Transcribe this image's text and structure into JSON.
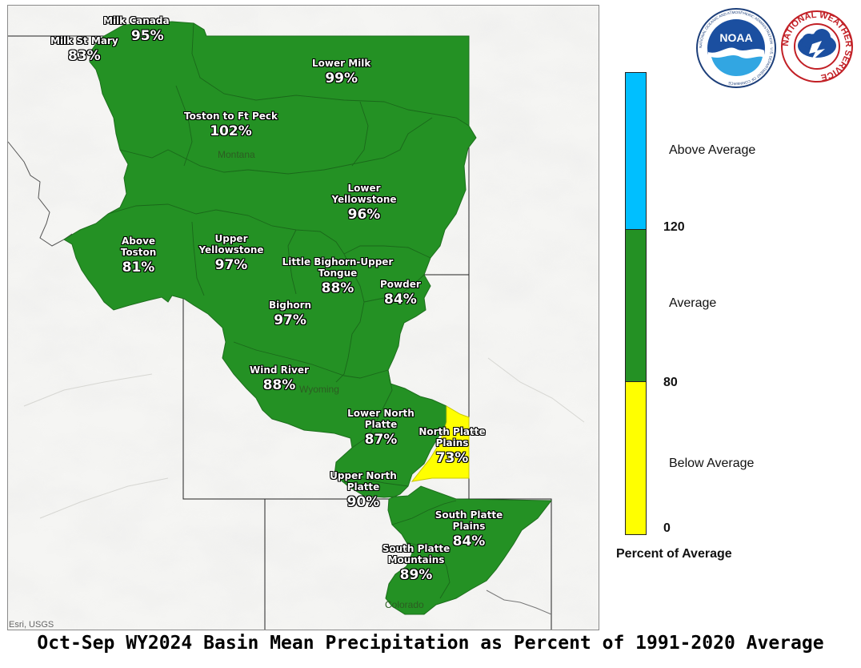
{
  "title": "Oct-Sep WY2024 Basin Mean Precipitation as Percent of 1991-2020 Average",
  "attribution": "Esri, USGS",
  "colors": {
    "above_average": "#00bfff",
    "average": "#249124",
    "below_average": "#ffff00"
  },
  "states": [
    {
      "name": "Montana"
    },
    {
      "name": "Wyoming"
    },
    {
      "name": "Colorado"
    }
  ],
  "basins": [
    {
      "name": "Milk Canada",
      "percent": "95%",
      "category": "average"
    },
    {
      "name": "Milk St Mary",
      "percent": "83%",
      "category": "average"
    },
    {
      "name": "Lower Milk",
      "percent": "99%",
      "category": "average"
    },
    {
      "name": "Toston to Ft Peck",
      "percent": "102%",
      "category": "average"
    },
    {
      "name": "Lower Yellowstone",
      "percent": "96%",
      "category": "average"
    },
    {
      "name": "Above Toston",
      "percent": "81%",
      "category": "average"
    },
    {
      "name": "Upper Yellowstone",
      "percent": "97%",
      "category": "average"
    },
    {
      "name": "Little Bighorn-Upper Tongue",
      "percent": "88%",
      "category": "average"
    },
    {
      "name": "Powder",
      "percent": "84%",
      "category": "average"
    },
    {
      "name": "Bighorn",
      "percent": "97%",
      "category": "average"
    },
    {
      "name": "Wind River",
      "percent": "88%",
      "category": "average"
    },
    {
      "name": "Lower North Platte",
      "percent": "87%",
      "category": "average"
    },
    {
      "name": "North Platte Plains",
      "percent": "73%",
      "category": "below_average"
    },
    {
      "name": "Upper North Platte",
      "percent": "90%",
      "category": "average"
    },
    {
      "name": "South Platte Plains",
      "percent": "84%",
      "category": "average"
    },
    {
      "name": "South Platte Mountains",
      "percent": "89%",
      "category": "average"
    }
  ],
  "legend": {
    "title": "Percent of Average",
    "categories": [
      {
        "label": "Above Average",
        "color": "#00bfff"
      },
      {
        "label": "Average",
        "color": "#249124"
      },
      {
        "label": "Below Average",
        "color": "#ffff00"
      }
    ],
    "breaks": [
      "120",
      "80",
      "0"
    ]
  },
  "logos": [
    {
      "name": "noaa-logo",
      "text": "NOAA",
      "ring_text": "NATIONAL OCEANIC AND ATMOSPHERIC ADMINISTRATION · U.S. DEPARTMENT OF COMMERCE"
    },
    {
      "name": "nws-logo",
      "ring_text": "NATIONAL WEATHER SERVICE"
    }
  ]
}
